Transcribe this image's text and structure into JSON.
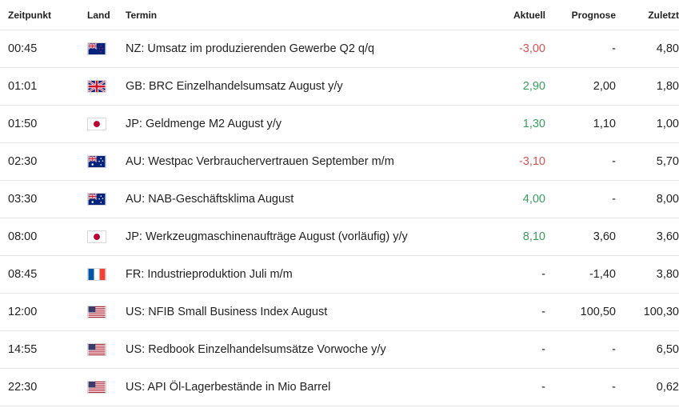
{
  "headers": {
    "time": "Zeitpunkt",
    "land": "Land",
    "termin": "Termin",
    "aktuell": "Aktuell",
    "prognose": "Prognose",
    "zuletzt": "Zuletzt"
  },
  "colors": {
    "negative": "#d9534f",
    "positive": "#3a9d5d"
  },
  "rows": [
    {
      "time": "00:45",
      "country": "nz-flag-icon",
      "termin": "NZ: Umsatz im produzierenden Gewerbe Q2 q/q",
      "aktuell": "-3,00",
      "trend": "neg",
      "prognose": "-",
      "zuletzt": "4,80"
    },
    {
      "time": "01:01",
      "country": "gb-flag-icon",
      "termin": "GB: BRC Einzelhandelsumsatz August y/y",
      "aktuell": "2,90",
      "trend": "pos",
      "prognose": "2,00",
      "zuletzt": "1,80"
    },
    {
      "time": "01:50",
      "country": "jp-flag-icon",
      "termin": "JP: Geldmenge M2 August y/y",
      "aktuell": "1,30",
      "trend": "pos",
      "prognose": "1,10",
      "zuletzt": "1,00"
    },
    {
      "time": "02:30",
      "country": "au-flag-icon",
      "termin": "AU: Westpac Verbrauchervertrauen September m/m",
      "aktuell": "-3,10",
      "trend": "neg",
      "prognose": "-",
      "zuletzt": "5,70"
    },
    {
      "time": "03:30",
      "country": "au-flag-icon",
      "termin": "AU: NAB-Geschäftsklima August",
      "aktuell": "4,00",
      "trend": "pos",
      "prognose": "-",
      "zuletzt": "8,00"
    },
    {
      "time": "08:00",
      "country": "jp-flag-icon",
      "termin": "JP: Werkzeugmaschinenaufträge August (vorläufig) y/y",
      "aktuell": "8,10",
      "trend": "pos",
      "prognose": "3,60",
      "zuletzt": "3,60"
    },
    {
      "time": "08:45",
      "country": "fr-flag-icon",
      "termin": "FR: Industrieproduktion Juli m/m",
      "aktuell": "-",
      "trend": "none",
      "prognose": "-1,40",
      "zuletzt": "3,80"
    },
    {
      "time": "12:00",
      "country": "us-flag-icon",
      "termin": "US: NFIB Small Business Index August",
      "aktuell": "-",
      "trend": "none",
      "prognose": "100,50",
      "zuletzt": "100,30"
    },
    {
      "time": "14:55",
      "country": "us-flag-icon",
      "termin": "US: Redbook Einzelhandelsumsätze Vorwoche y/y",
      "aktuell": "-",
      "trend": "none",
      "prognose": "-",
      "zuletzt": "6,50"
    },
    {
      "time": "22:30",
      "country": "us-flag-icon",
      "termin": "US: API Öl-Lagerbestände in Mio Barrel",
      "aktuell": "-",
      "trend": "none",
      "prognose": "-",
      "zuletzt": "0,62"
    }
  ]
}
